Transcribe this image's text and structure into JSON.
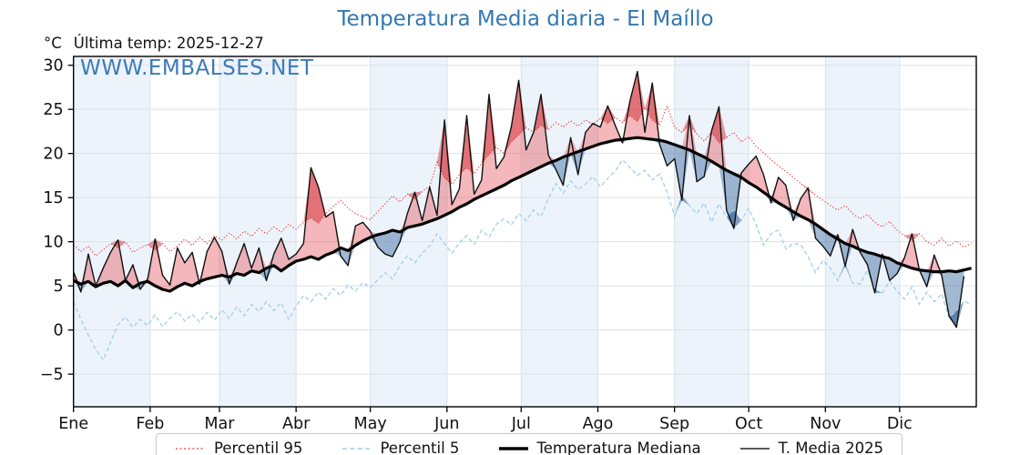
{
  "header": {
    "title": "Temperatura Media diaria - El Maíllo",
    "units": "°C",
    "last_temp": "Última temp: 2025-12-27"
  },
  "watermark": "WWW.EMBALSES.NET",
  "legend": {
    "items": [
      {
        "label": "Percentil 95",
        "style": "dotted-red"
      },
      {
        "label": "Percentil 5",
        "style": "dashed-blue"
      },
      {
        "label": "Temperatura Mediana",
        "style": "thick-black"
      },
      {
        "label": "T. Media 2025",
        "style": "thin-black"
      }
    ]
  },
  "colors": {
    "title": "#3377b0",
    "watermark": "#3b7ab8",
    "p95_line": "#e63939",
    "p5_line": "#9fd0e8",
    "median_line": "#000000",
    "t2025_line": "#101010",
    "fill_above": "rgba(228,75,85,0.40)",
    "fill_above_extreme": "rgba(204,32,38,0.45)",
    "fill_below": "rgba(70,115,165,0.50)",
    "fill_below_extreme": "rgba(25,70,130,0.50)",
    "month_band": "#edf3fa",
    "gridline": "#dce1e7",
    "spine": "#000000"
  },
  "chart_data": {
    "type": "line",
    "title": "Temperatura Media diaria - El Maíllo",
    "xlabel": "",
    "ylabel": "°C",
    "x_unit": "day_of_year",
    "days_in_year": 365,
    "step_days": 3,
    "ylim": [
      -8.7,
      31
    ],
    "yticks": [
      -5,
      0,
      5,
      10,
      15,
      20,
      25,
      30
    ],
    "months": [
      "Ene",
      "Feb",
      "Mar",
      "Abr",
      "May",
      "Jun",
      "Jul",
      "Ago",
      "Sep",
      "Oct",
      "Nov",
      "Dic"
    ],
    "month_start_days": [
      0,
      31,
      59,
      90,
      120,
      151,
      181,
      212,
      243,
      273,
      304,
      334
    ],
    "grid": true,
    "legend_position": "bottom-center",
    "annotations": [
      "WWW.EMBALSES.NET",
      "Última temp: 2025-12-27"
    ],
    "series": [
      {
        "name": "Percentil 95",
        "values": [
          9.6,
          8.9,
          9.5,
          8.4,
          9.1,
          9.8,
          9.3,
          10.0,
          8.8,
          9.3,
          9.7,
          9.0,
          9.8,
          8.9,
          9.5,
          10.3,
          9.6,
          10.5,
          9.8,
          10.7,
          10.2,
          11.0,
          10.3,
          11.2,
          10.6,
          11.5,
          10.9,
          11.7,
          11.1,
          12.0,
          11.4,
          12.2,
          12.7,
          12.1,
          13.2,
          14.0,
          14.7,
          13.8,
          13.2,
          12.8,
          12.5,
          13.4,
          14.3,
          15.2,
          14.5,
          15.4,
          14.8,
          15.7,
          16.3,
          19.0,
          17.2,
          16.5,
          17.6,
          18.4,
          17.7,
          18.9,
          19.9,
          20.7,
          20.0,
          21.3,
          22.1,
          22.9,
          22.4,
          23.2,
          22.7,
          23.5,
          23.0,
          23.7,
          23.1,
          23.8,
          23.3,
          24.0,
          23.4,
          24.1,
          23.5,
          24.3,
          23.6,
          25.2,
          23.8,
          23.2,
          25.4,
          23.0,
          22.4,
          23.2,
          22.2,
          21.4,
          22.4,
          21.2,
          21.8,
          22.4,
          21.3,
          21.9,
          20.8,
          20.1,
          19.3,
          18.6,
          18.0,
          17.3,
          16.6,
          15.9,
          15.3,
          14.7,
          14.1,
          13.6,
          14.1,
          13.2,
          12.6,
          13.1,
          12.2,
          11.7,
          12.3,
          11.3,
          10.7,
          10.1,
          10.9,
          10.0,
          9.6,
          10.4,
          9.5,
          10.1,
          9.4,
          9.8
        ]
      },
      {
        "name": "Percentil 5",
        "values": [
          3.2,
          1.2,
          -0.6,
          -2.2,
          -3.4,
          -1.4,
          0.6,
          1.5,
          0.3,
          1.2,
          0.5,
          1.7,
          0.4,
          1.3,
          2.1,
          1.0,
          1.8,
          0.9,
          2.0,
          1.1,
          2.3,
          1.3,
          2.6,
          1.6,
          2.9,
          2.1,
          3.2,
          2.2,
          3.1,
          1.2,
          2.7,
          3.9,
          3.2,
          4.3,
          3.5,
          4.7,
          3.9,
          5.1,
          4.4,
          5.4,
          4.8,
          5.7,
          6.5,
          5.8,
          7.3,
          8.4,
          7.6,
          8.7,
          9.5,
          10.9,
          9.8,
          8.7,
          9.9,
          10.7,
          9.7,
          11.3,
          10.5,
          12.0,
          12.6,
          11.9,
          13.2,
          12.4,
          13.6,
          12.8,
          14.9,
          16.6,
          15.5,
          16.9,
          15.9,
          16.5,
          17.4,
          16.2,
          17.2,
          18.0,
          19.3,
          18.4,
          17.5,
          18.1,
          17.0,
          17.7,
          15.6,
          12.9,
          15.3,
          14.1,
          13.2,
          14.4,
          12.2,
          14.3,
          12.8,
          13.6,
          12.4,
          13.8,
          11.9,
          9.6,
          10.9,
          11.3,
          9.2,
          9.8,
          9.7,
          8.3,
          6.5,
          7.9,
          7.0,
          5.6,
          7.6,
          5.3,
          5.2,
          6.8,
          4.6,
          4.2,
          5.5,
          4.4,
          3.5,
          4.9,
          2.9,
          4.3,
          3.2,
          4.1,
          1.4,
          2.2,
          3.3,
          2.8
        ]
      },
      {
        "name": "Temperatura Mediana",
        "values": [
          5.6,
          5.2,
          5.5,
          4.9,
          5.3,
          5.5,
          5.0,
          5.6,
          4.8,
          5.3,
          5.5,
          5.0,
          4.6,
          4.4,
          4.9,
          5.3,
          5.0,
          5.5,
          5.8,
          6.0,
          6.2,
          6.0,
          6.4,
          6.2,
          6.7,
          6.5,
          7.0,
          7.3,
          6.7,
          7.3,
          7.8,
          8.0,
          8.3,
          8.0,
          8.5,
          8.8,
          9.3,
          9.0,
          9.6,
          10.1,
          10.5,
          10.8,
          11.0,
          11.3,
          11.1,
          11.6,
          11.8,
          12.0,
          12.3,
          12.6,
          13.0,
          13.4,
          13.9,
          14.3,
          14.8,
          15.2,
          15.6,
          16.0,
          16.4,
          16.9,
          17.3,
          17.7,
          18.1,
          18.5,
          18.9,
          19.2,
          19.6,
          19.9,
          20.2,
          20.5,
          20.8,
          21.1,
          21.3,
          21.5,
          21.6,
          21.7,
          21.8,
          21.7,
          21.6,
          21.5,
          21.3,
          21.0,
          20.7,
          20.4,
          20.0,
          19.6,
          19.1,
          18.6,
          18.1,
          17.7,
          17.3,
          16.7,
          16.2,
          15.6,
          15.0,
          14.4,
          13.9,
          13.4,
          12.9,
          12.5,
          12.0,
          11.4,
          10.8,
          10.3,
          9.8,
          9.5,
          9.1,
          8.8,
          8.6,
          8.3,
          8.1,
          7.6,
          7.3,
          7.0,
          6.8,
          6.7,
          6.6,
          6.6,
          6.7,
          6.6,
          6.8,
          7.0
        ]
      },
      {
        "name": "T. Media 2025",
        "values": [
          6.6,
          4.3,
          8.6,
          5.0,
          7.0,
          8.8,
          10.2,
          5.6,
          7.4,
          4.6,
          5.8,
          10.3,
          6.2,
          5.1,
          9.3,
          7.6,
          8.8,
          5.2,
          8.9,
          10.5,
          8.9,
          5.2,
          7.6,
          9.8,
          7.0,
          9.3,
          5.6,
          8.6,
          10.4,
          8.0,
          8.6,
          9.8,
          18.4,
          16.2,
          12.8,
          13.4,
          8.4,
          7.3,
          11.8,
          12.2,
          11.2,
          9.4,
          8.6,
          8.3,
          10.0,
          13.2,
          15.6,
          12.4,
          16.2,
          13.0,
          23.8,
          14.2,
          16.0,
          24.3,
          15.4,
          17.0,
          26.7,
          18.3,
          19.6,
          23.0,
          28.3,
          20.4,
          22.4,
          26.7,
          19.8,
          18.2,
          16.4,
          21.8,
          17.6,
          22.4,
          23.4,
          23.0,
          25.4,
          23.2,
          21.2,
          26.0,
          29.3,
          22.4,
          28.0,
          21.0,
          18.6,
          19.4,
          14.7,
          24.3,
          16.8,
          17.4,
          22.6,
          25.3,
          13.6,
          11.5,
          17.8,
          18.8,
          19.7,
          17.6,
          14.4,
          17.3,
          16.4,
          12.4,
          14.9,
          16.1,
          10.4,
          9.5,
          8.4,
          10.8,
          7.2,
          11.4,
          8.8,
          7.4,
          4.2,
          8.6,
          5.6,
          6.4,
          8.2,
          10.9,
          6.8,
          4.9,
          8.5,
          6.2,
          1.6,
          0.3,
          6.1
        ]
      }
    ]
  }
}
